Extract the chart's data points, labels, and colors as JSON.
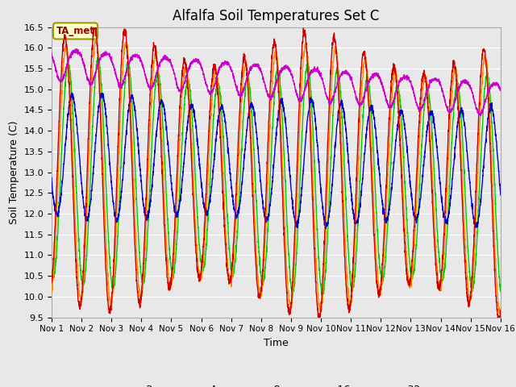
{
  "title": "Alfalfa Soil Temperatures Set C",
  "xlabel": "Time",
  "ylabel": "Soil Temperature (C)",
  "ylim": [
    9.5,
    16.5
  ],
  "xlim": [
    0,
    15
  ],
  "xtick_labels": [
    "Nov 1",
    "Nov 2",
    "Nov 3",
    "Nov 4",
    "Nov 5",
    "Nov 6",
    "Nov 7",
    "Nov 8",
    "Nov 9",
    "Nov 10",
    "Nov 11",
    "Nov 12",
    "Nov 13",
    "Nov 14",
    "Nov 15",
    "Nov 16"
  ],
  "ytick_values": [
    9.5,
    10.0,
    10.5,
    11.0,
    11.5,
    12.0,
    12.5,
    13.0,
    13.5,
    14.0,
    14.5,
    15.0,
    15.5,
    16.0,
    16.5
  ],
  "colors": {
    "-2cm": "#cc0000",
    "-4cm": "#ff8800",
    "-8cm": "#00cc00",
    "-16cm": "#0000cc",
    "-32cm": "#cc00cc"
  },
  "annotation_text": "TA_met",
  "bg_color": "#e8e8e8",
  "grid_color": "#ffffff",
  "n_points": 2880,
  "start_day": 0,
  "end_day": 15
}
